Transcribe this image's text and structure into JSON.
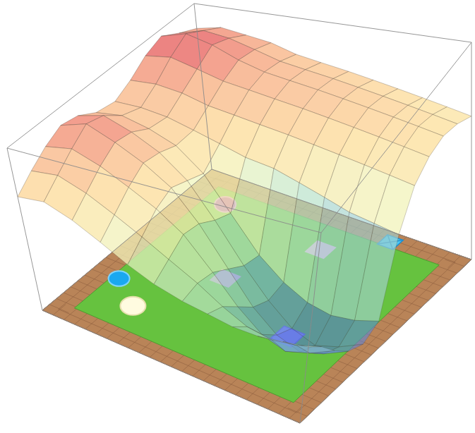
{
  "chart_data": {
    "type": "surface",
    "x": [
      0,
      0.09,
      0.18,
      0.27,
      0.36,
      0.45,
      0.55,
      0.64,
      0.73,
      0.82,
      0.91,
      1
    ],
    "y": [
      0,
      0.09,
      0.18,
      0.27,
      0.36,
      0.45,
      0.55,
      0.64,
      0.73,
      0.82,
      0.91,
      1
    ],
    "z": [
      [
        0.7,
        0.78,
        0.85,
        0.9,
        0.88,
        0.82,
        0.8,
        0.85,
        0.92,
        0.96,
        0.9,
        0.85
      ],
      [
        0.72,
        0.8,
        0.88,
        0.95,
        0.92,
        0.84,
        0.8,
        0.86,
        0.94,
        1.0,
        0.94,
        0.88
      ],
      [
        0.66,
        0.74,
        0.82,
        0.88,
        0.86,
        0.8,
        0.78,
        0.84,
        0.9,
        0.96,
        0.92,
        0.86
      ],
      [
        0.58,
        0.66,
        0.74,
        0.8,
        0.78,
        0.74,
        0.74,
        0.8,
        0.86,
        0.9,
        0.88,
        0.84
      ],
      [
        0.5,
        0.58,
        0.66,
        0.7,
        0.66,
        0.62,
        0.7,
        0.78,
        0.84,
        0.86,
        0.84,
        0.8
      ],
      [
        0.44,
        0.5,
        0.56,
        0.54,
        0.48,
        0.44,
        0.66,
        0.76,
        0.82,
        0.84,
        0.82,
        0.78
      ],
      [
        0.4,
        0.42,
        0.4,
        0.34,
        0.28,
        0.26,
        0.64,
        0.74,
        0.8,
        0.82,
        0.8,
        0.76
      ],
      [
        0.38,
        0.34,
        0.26,
        0.18,
        0.14,
        0.16,
        0.6,
        0.72,
        0.78,
        0.8,
        0.78,
        0.74
      ],
      [
        0.36,
        0.28,
        0.16,
        0.08,
        0.04,
        0.1,
        0.56,
        0.7,
        0.76,
        0.78,
        0.76,
        0.72
      ],
      [
        0.36,
        0.26,
        0.12,
        0.04,
        0.0,
        0.08,
        0.52,
        0.68,
        0.74,
        0.76,
        0.74,
        0.7
      ],
      [
        0.38,
        0.28,
        0.16,
        0.08,
        0.04,
        0.1,
        0.5,
        0.66,
        0.72,
        0.74,
        0.72,
        0.68
      ],
      [
        0.4,
        0.32,
        0.22,
        0.14,
        0.1,
        0.14,
        0.48,
        0.64,
        0.7,
        0.72,
        0.7,
        0.66
      ]
    ],
    "xlim": [
      0,
      1
    ],
    "ylim": [
      0,
      1
    ],
    "zlim": [
      0,
      1
    ],
    "tick_labels": false
  }
}
